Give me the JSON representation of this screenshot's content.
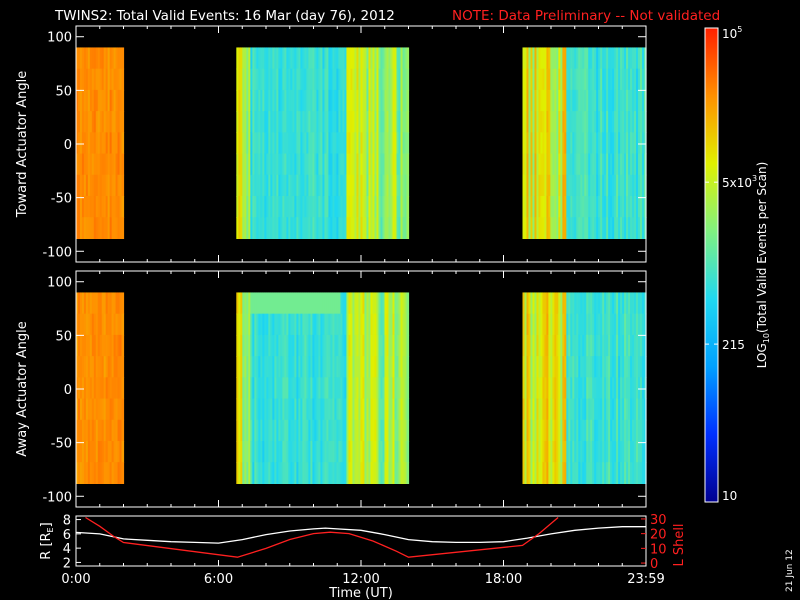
{
  "title": {
    "main": "TWINS2: Total Valid Events: 16 Mar (day  76), 2012",
    "note": "NOTE: Data Preliminary -- Not validated",
    "note_color": "#ff2020"
  },
  "side_stamp": "21 Jun 12",
  "colorbar": {
    "label": "LOG10(Total Valid Events per Scan)",
    "label_prefix": "LOG",
    "label_sub": "10",
    "label_suffix": "(Total Valid Events per Scan)",
    "ticks": [
      {
        "value": 10,
        "text": "10"
      },
      {
        "value": 215,
        "text": "215"
      },
      {
        "value": 5000,
        "text": "5x10",
        "sup": "3"
      },
      {
        "value": 100000,
        "text": "10",
        "sup": "5"
      }
    ],
    "range": [
      10,
      100000
    ],
    "scale": "log",
    "colors": [
      "#000090",
      "#0030ff",
      "#00a0ff",
      "#20d8f0",
      "#80f080",
      "#e0f000",
      "#ff9000",
      "#ff2000"
    ]
  },
  "chart_data": [
    {
      "type": "heatmap",
      "name": "toward",
      "ylabel": "Toward Actuator Angle",
      "yticks": [
        100,
        50,
        0,
        -50,
        -100
      ],
      "ylim": [
        -110,
        110
      ],
      "xlim": [
        0,
        24
      ],
      "data_ylim": [
        -88,
        90
      ],
      "segments": [
        {
          "start": 0.0,
          "end": 2.0,
          "level": "high"
        },
        {
          "start": 6.75,
          "end": 14.0,
          "level": "mixed"
        },
        {
          "start": 18.8,
          "end": 24.0,
          "level": "mixed"
        }
      ]
    },
    {
      "type": "heatmap",
      "name": "away",
      "ylabel": "Away Actuator Angle",
      "yticks": [
        100,
        50,
        0,
        -50,
        -100
      ],
      "ylim": [
        -110,
        110
      ],
      "xlim": [
        0,
        24
      ],
      "data_ylim": [
        -88,
        90
      ],
      "segments": [
        {
          "start": 0.0,
          "end": 2.0,
          "level": "high"
        },
        {
          "start": 6.75,
          "end": 14.0,
          "level": "mixed"
        },
        {
          "start": 18.8,
          "end": 24.0,
          "level": "mixed"
        }
      ]
    },
    {
      "type": "line",
      "name": "orbit",
      "xlabel": "Time (UT)",
      "xticks": [
        "0:00",
        "6:00",
        "12:00",
        "18:00",
        "23:59"
      ],
      "xtick_values": [
        0,
        6,
        12,
        18,
        24
      ],
      "xlim": [
        0,
        24
      ],
      "ylabel_left": "R [RE]",
      "ylabel_left_main": "R [R",
      "ylabel_left_sub": "E",
      "ylabel_left_end": "]",
      "yticks_left": [
        2,
        4,
        6,
        8
      ],
      "ylim_left": [
        1.5,
        8.5
      ],
      "ylabel_right": "L Shell",
      "yticks_right": [
        0,
        10,
        20,
        30
      ],
      "ylim_right": [
        -2,
        32
      ],
      "series": [
        {
          "axis": "left",
          "color": "#ffffff",
          "x": [
            0,
            1,
            2,
            3,
            4,
            5,
            6,
            7,
            8,
            9,
            10,
            10.5,
            11,
            12,
            13,
            14,
            15,
            16,
            17,
            18,
            19,
            20,
            21,
            22,
            23,
            24
          ],
          "y": [
            6.2,
            6.0,
            5.3,
            5.1,
            4.9,
            4.8,
            4.7,
            5.2,
            5.9,
            6.4,
            6.7,
            6.8,
            6.7,
            6.5,
            5.9,
            5.2,
            4.9,
            4.8,
            4.8,
            4.9,
            5.4,
            6.0,
            6.5,
            6.8,
            7.0,
            7.0
          ]
        },
        {
          "axis": "right",
          "color": "#ff2020",
          "x": [
            0.4,
            1.0,
            1.6,
            2.0,
            6.8,
            8.0,
            9.0,
            10.0,
            10.7,
            11.5,
            12.5,
            13.5,
            14.0,
            18.8,
            19.5,
            20.3
          ],
          "y": [
            31,
            25,
            18,
            14,
            4,
            10,
            16,
            20,
            21,
            20,
            15,
            8,
            4,
            12,
            20,
            31
          ]
        }
      ]
    }
  ]
}
